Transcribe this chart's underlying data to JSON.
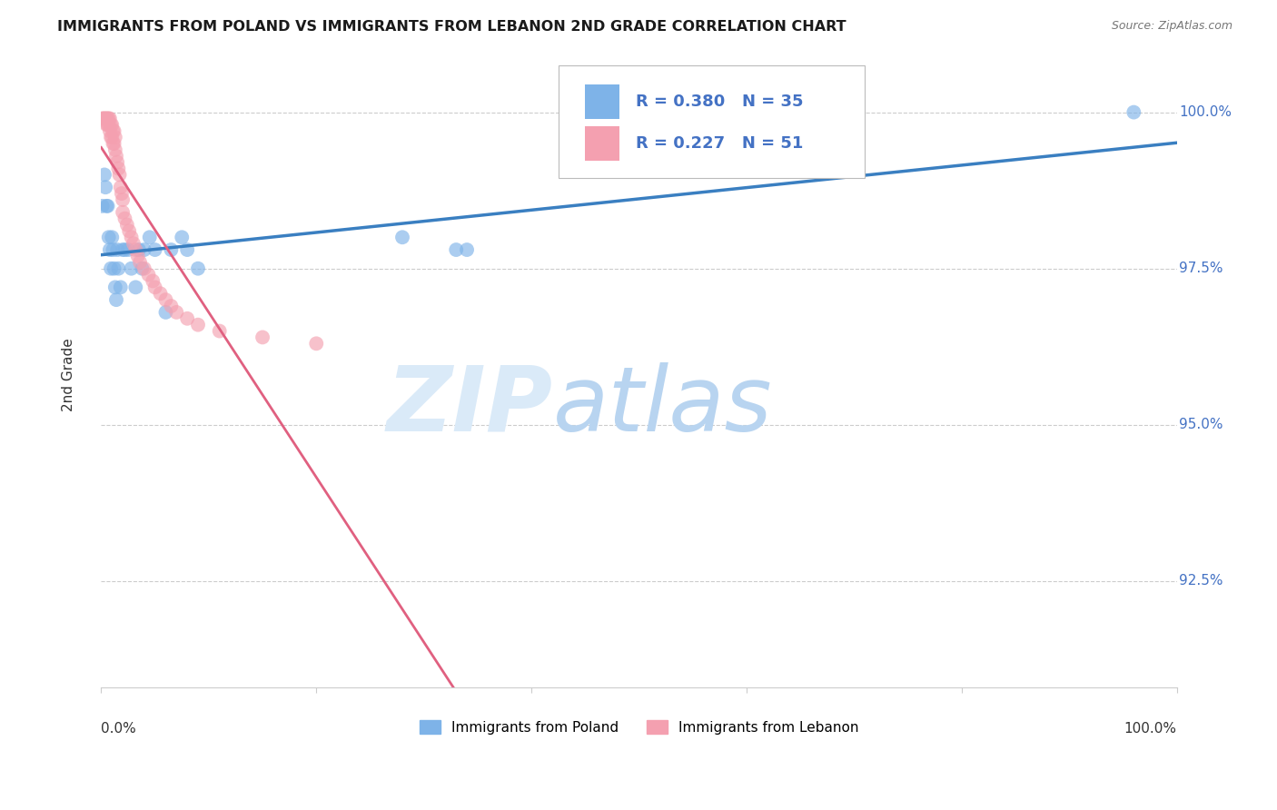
{
  "title": "IMMIGRANTS FROM POLAND VS IMMIGRANTS FROM LEBANON 2ND GRADE CORRELATION CHART",
  "source": "Source: ZipAtlas.com",
  "ylabel": "2nd Grade",
  "xlim": [
    0.0,
    1.0
  ],
  "ylim": [
    0.908,
    1.008
  ],
  "yticks": [
    0.925,
    0.95,
    0.975,
    1.0
  ],
  "ytick_labels": [
    "92.5%",
    "95.0%",
    "97.5%",
    "100.0%"
  ],
  "poland_R": 0.38,
  "poland_N": 35,
  "lebanon_R": 0.227,
  "lebanon_N": 51,
  "poland_color": "#7EB3E8",
  "lebanon_color": "#F4A0B0",
  "poland_line_color": "#3A7FC1",
  "lebanon_line_color": "#E06080",
  "poland_x": [
    0.001,
    0.003,
    0.004,
    0.005,
    0.006,
    0.007,
    0.008,
    0.009,
    0.01,
    0.011,
    0.012,
    0.013,
    0.014,
    0.015,
    0.016,
    0.018,
    0.02,
    0.022,
    0.025,
    0.028,
    0.032,
    0.035,
    0.038,
    0.04,
    0.045,
    0.05,
    0.06,
    0.065,
    0.075,
    0.08,
    0.09,
    0.28,
    0.33,
    0.34,
    0.96
  ],
  "poland_y": [
    0.985,
    0.99,
    0.988,
    0.985,
    0.985,
    0.98,
    0.978,
    0.975,
    0.98,
    0.978,
    0.975,
    0.972,
    0.97,
    0.978,
    0.975,
    0.972,
    0.978,
    0.978,
    0.978,
    0.975,
    0.972,
    0.978,
    0.975,
    0.978,
    0.98,
    0.978,
    0.968,
    0.978,
    0.98,
    0.978,
    0.975,
    0.98,
    0.978,
    0.978,
    1.0
  ],
  "lebanon_x": [
    0.001,
    0.002,
    0.003,
    0.004,
    0.005,
    0.005,
    0.006,
    0.006,
    0.007,
    0.007,
    0.008,
    0.008,
    0.009,
    0.009,
    0.01,
    0.01,
    0.011,
    0.011,
    0.012,
    0.012,
    0.013,
    0.013,
    0.014,
    0.015,
    0.016,
    0.017,
    0.018,
    0.019,
    0.02,
    0.02,
    0.022,
    0.024,
    0.026,
    0.028,
    0.03,
    0.032,
    0.034,
    0.036,
    0.04,
    0.044,
    0.048,
    0.05,
    0.055,
    0.06,
    0.065,
    0.07,
    0.08,
    0.09,
    0.11,
    0.15,
    0.2
  ],
  "lebanon_y": [
    0.999,
    0.999,
    0.999,
    0.999,
    0.999,
    0.998,
    0.999,
    0.998,
    0.999,
    0.998,
    0.999,
    0.997,
    0.998,
    0.996,
    0.998,
    0.996,
    0.997,
    0.995,
    0.997,
    0.995,
    0.996,
    0.994,
    0.993,
    0.992,
    0.991,
    0.99,
    0.988,
    0.987,
    0.986,
    0.984,
    0.983,
    0.982,
    0.981,
    0.98,
    0.979,
    0.978,
    0.977,
    0.976,
    0.975,
    0.974,
    0.973,
    0.972,
    0.971,
    0.97,
    0.969,
    0.968,
    0.967,
    0.966,
    0.965,
    0.964,
    0.963
  ]
}
